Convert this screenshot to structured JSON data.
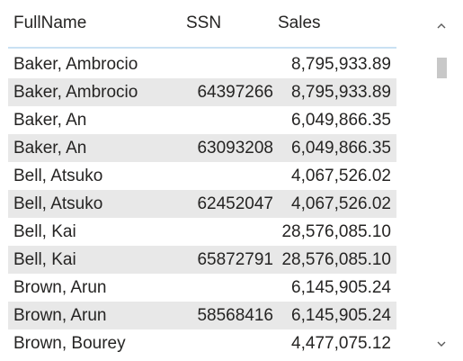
{
  "table": {
    "columns": [
      "FullName",
      "SSN",
      "Sales"
    ],
    "rows": [
      {
        "full_name": "Baker, Ambrocio",
        "ssn": "",
        "sales": "8,795,933.89"
      },
      {
        "full_name": "Baker, Ambrocio",
        "ssn": "64397266",
        "sales": "8,795,933.89"
      },
      {
        "full_name": "Baker, An",
        "ssn": "",
        "sales": "6,049,866.35"
      },
      {
        "full_name": "Baker, An",
        "ssn": "63093208",
        "sales": "6,049,866.35"
      },
      {
        "full_name": "Bell, Atsuko",
        "ssn": "",
        "sales": "4,067,526.02"
      },
      {
        "full_name": "Bell, Atsuko",
        "ssn": "62452047",
        "sales": "4,067,526.02"
      },
      {
        "full_name": "Bell, Kai",
        "ssn": "",
        "sales": "28,576,085.10"
      },
      {
        "full_name": "Bell, Kai",
        "ssn": "65872791",
        "sales": "28,576,085.10"
      },
      {
        "full_name": "Brown, Arun",
        "ssn": "",
        "sales": "6,145,905.24"
      },
      {
        "full_name": "Brown, Arun",
        "ssn": "58568416",
        "sales": "6,145,905.24"
      },
      {
        "full_name": "Brown, Bourey",
        "ssn": "",
        "sales": "4,477,075.12"
      }
    ]
  },
  "scrollbar": {
    "up_icon": "chevron-up-icon",
    "down_icon": "chevron-down-icon"
  },
  "colors": {
    "row_alt_background": "#e8e8e8",
    "header_underline": "#c9e1f3",
    "text": "#252423"
  }
}
